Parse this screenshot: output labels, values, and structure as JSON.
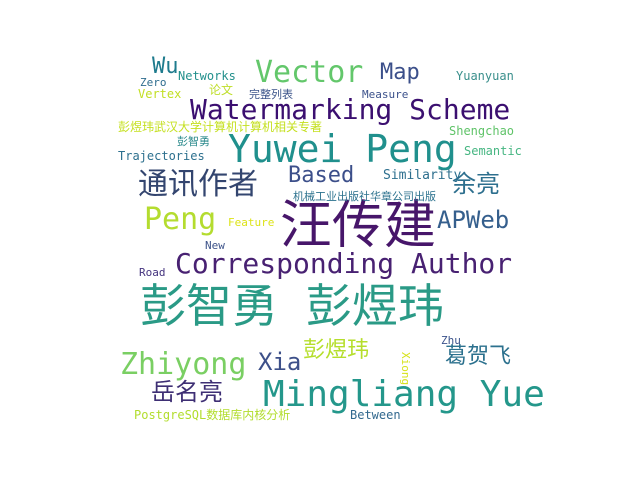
{
  "words": [
    {
      "text": "彭智勇 彭煜玮",
      "color": "#2a9a86"
    },
    {
      "text": "汪传建",
      "color": "#47166a"
    },
    {
      "text": "Yuwei Peng",
      "color": "#20908d"
    },
    {
      "text": "Mingliang Yue",
      "color": "#24978b"
    },
    {
      "text": "Watermarking Scheme",
      "color": "#3b0f70"
    },
    {
      "text": "Corresponding Author",
      "color": "#482172"
    },
    {
      "text": "通讯作者",
      "color": "#33456f"
    },
    {
      "text": "Vector",
      "color": "#63c76b"
    },
    {
      "text": "Zhiyong",
      "color": "#7acf63"
    },
    {
      "text": "Peng",
      "color": "#b4dc2f"
    },
    {
      "text": "APWeb",
      "color": "#355f8d"
    },
    {
      "text": "Map",
      "color": "#3b4f8a"
    },
    {
      "text": "余亮",
      "color": "#2d6f8e"
    },
    {
      "text": "彭煜玮",
      "color": "#b5de2b"
    },
    {
      "text": "葛贺飞",
      "color": "#2c718e"
    },
    {
      "text": "岳名亮",
      "color": "#3e2f74"
    },
    {
      "text": "Based",
      "color": "#3c4f8a"
    },
    {
      "text": "Xia",
      "color": "#3d5089"
    },
    {
      "text": "Wu",
      "color": "#1e7b8d"
    },
    {
      "text": "Similarity",
      "color": "#2d6f8e"
    },
    {
      "text": "Semantic",
      "color": "#46b682"
    },
    {
      "text": "Shengchao",
      "color": "#5fc368"
    },
    {
      "text": "Yuanyuan",
      "color": "#3a8f8c"
    },
    {
      "text": "Networks",
      "color": "#22908c"
    },
    {
      "text": "Zero",
      "color": "#2e6c8e"
    },
    {
      "text": "Vertex",
      "color": "#c2df23"
    },
    {
      "text": "论文",
      "color": "#bfde2a"
    },
    {
      "text": "完整列表",
      "color": "#3a5389"
    },
    {
      "text": "Measure",
      "color": "#3b518b"
    },
    {
      "text": "彭煜玮武汉大学计算机计算机相关专著",
      "color": "#c5e021"
    },
    {
      "text": "彭智勇",
      "color": "#2b8a8c"
    },
    {
      "text": "Trajectories",
      "color": "#2d708e"
    },
    {
      "text": "机械工业出版社华章公司出版",
      "color": "#2c728e"
    },
    {
      "text": "Feature",
      "color": "#dde318"
    },
    {
      "text": "New",
      "color": "#3c5289"
    },
    {
      "text": "Road",
      "color": "#45347f"
    },
    {
      "text": "Zhu",
      "color": "#3a528b"
    },
    {
      "text": "Xiong",
      "color": "#d6e21a"
    },
    {
      "text": "PostgreSQL数据库内核分析",
      "color": "#b2dd2d"
    },
    {
      "text": "Between",
      "color": "#31688e"
    }
  ]
}
